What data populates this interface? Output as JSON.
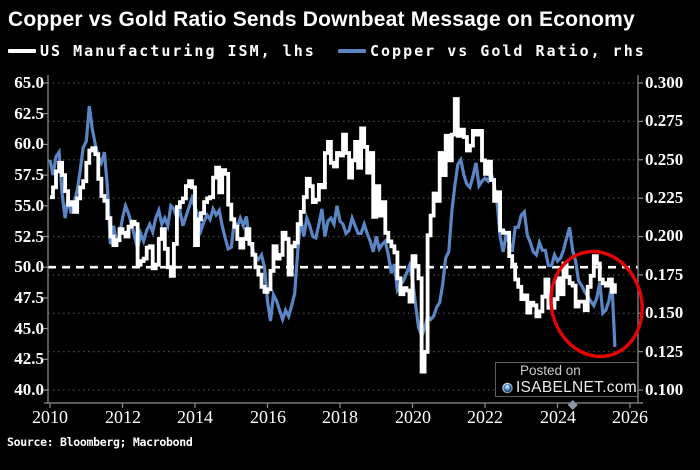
{
  "title": "Copper vs Gold Ratio Sends Downbeat Message on Economy",
  "legend": {
    "items": [
      {
        "label": "US Manufacturing ISM, lhs",
        "swatch_color": "#ffffff"
      },
      {
        "label": "Copper vs Gold Ratio, rhs",
        "swatch_color": "#5b86c5"
      }
    ]
  },
  "watermark": {
    "posted_on": "Posted on",
    "site": "ISABELNET.com"
  },
  "source": "Source: Bloomberg; Macrobond",
  "colors": {
    "background": "#000000",
    "ism_line": "#ffffff",
    "ratio_line": "#5b86c5",
    "grid_dotted": "#4a4a4a",
    "reference_dashed": "#ffffff",
    "axis": "#8f8f8f",
    "annotation": "#e60505",
    "axis_marker": "#8a97a5"
  },
  "chart_data": {
    "type": "line",
    "title": "Copper vs Gold Ratio Sends Downbeat Message on Economy",
    "x_axis": {
      "tick_labels": [
        "2010",
        "2012",
        "2014",
        "2016",
        "2018",
        "2020",
        "2022",
        "2024",
        "2026"
      ],
      "tick_years": [
        2010,
        2012,
        2014,
        2016,
        2018,
        2020,
        2022,
        2024,
        2026
      ],
      "range_years": [
        2010,
        2026.2
      ]
    },
    "left_axis": {
      "label": "US Manufacturing ISM",
      "ticks": [
        65.0,
        62.5,
        60.0,
        57.5,
        55.0,
        52.5,
        50.0,
        47.5,
        45.0,
        42.5,
        40.0
      ],
      "tick_labels": [
        "65.0",
        "62.5",
        "60.0",
        "57.5",
        "55.0",
        "52.5",
        "50.0",
        "47.5",
        "45.0",
        "42.5",
        "40.0"
      ],
      "range": [
        40.0,
        65.0
      ]
    },
    "right_axis": {
      "label": "Copper vs Gold Ratio",
      "ticks": [
        0.3,
        0.275,
        0.25,
        0.225,
        0.2,
        0.175,
        0.15,
        0.125,
        0.1
      ],
      "tick_labels": [
        "0.300",
        "0.275",
        "0.250",
        "0.225",
        "0.200",
        "0.175",
        "0.150",
        "0.125",
        "0.100"
      ],
      "range": [
        0.1,
        0.3
      ]
    },
    "reference_line": {
      "axis": "left",
      "value": 50.0,
      "style": "dashed",
      "color": "#ffffff"
    },
    "series": [
      {
        "name": "US Manufacturing ISM, lhs",
        "axis": "left",
        "line_style": "step",
        "color": "#ffffff",
        "start_year": 2010,
        "frequency": "monthly",
        "values": [
          55.7,
          56.5,
          57.8,
          58.5,
          57.5,
          56.2,
          55.1,
          55.3,
          54.5,
          55.6,
          56.5,
          57.0,
          58.5,
          59.5,
          59.7,
          59.2,
          57.2,
          55.8,
          55.4,
          54.0,
          52.5,
          51.8,
          52.2,
          53.1,
          52.8,
          52.5,
          53.3,
          53.7,
          53.5,
          50.2,
          50.5,
          50.7,
          51.6,
          51.7,
          49.9,
          50.2,
          52.3,
          53.1,
          51.5,
          50.0,
          49.3,
          51.9,
          54.9,
          55.3,
          55.6,
          56.6,
          57.0,
          56.5,
          51.8,
          53.9,
          54.4,
          55.3,
          55.6,
          55.7,
          57.3,
          58.1,
          56.1,
          57.9,
          57.6,
          55.1,
          53.9,
          53.3,
          52.3,
          51.6,
          52.3,
          53.1,
          51.9,
          51.0,
          50.0,
          49.4,
          48.4,
          48.0,
          48.2,
          49.7,
          51.7,
          50.7,
          51.0,
          52.8,
          52.3,
          49.4,
          51.7,
          52.0,
          53.5,
          54.5,
          55.7,
          57.2,
          56.6,
          55.3,
          55.5,
          56.7,
          56.5,
          59.3,
          60.2,
          58.5,
          58.2,
          59.3,
          59.1,
          60.8,
          59.3,
          57.3,
          58.7,
          60.2,
          58.1,
          61.3,
          59.8,
          57.7,
          59.3,
          54.1,
          56.6,
          54.2,
          55.3,
          52.8,
          52.1,
          51.7,
          51.2,
          49.1,
          47.8,
          48.3,
          48.1,
          47.2,
          50.9,
          50.1,
          49.1,
          41.5,
          43.1,
          52.6,
          54.2,
          56.0,
          55.4,
          59.3,
          57.5,
          60.7,
          58.7,
          60.8,
          63.7,
          60.7,
          61.2,
          60.6,
          59.5,
          59.9,
          61.1,
          60.8,
          61.1,
          58.7,
          57.6,
          58.6,
          57.1,
          55.4,
          56.1,
          53.0,
          52.8,
          52.8,
          50.9,
          50.2,
          49.0,
          48.4,
          47.4,
          47.7,
          46.3,
          47.1,
          46.9,
          46.0,
          46.4,
          47.6,
          49.0,
          46.7,
          46.7,
          47.4,
          49.1,
          47.8,
          50.3,
          49.2,
          48.7,
          48.5,
          46.8,
          47.2,
          47.2,
          46.5,
          48.4,
          49.3,
          50.9,
          50.3,
          49.0,
          48.7,
          48.5,
          49.0,
          48.0,
          48.7
        ]
      },
      {
        "name": "Copper vs Gold Ratio, rhs",
        "axis": "right",
        "line_style": "linear",
        "color": "#5b86c5",
        "start_year": 2010,
        "frequency": "monthly",
        "values": [
          0.25,
          0.24,
          0.252,
          0.255,
          0.228,
          0.212,
          0.225,
          0.215,
          0.222,
          0.23,
          0.243,
          0.258,
          0.262,
          0.285,
          0.27,
          0.26,
          0.252,
          0.248,
          0.255,
          0.232,
          0.195,
          0.207,
          0.197,
          0.201,
          0.212,
          0.22,
          0.215,
          0.208,
          0.2,
          0.192,
          0.202,
          0.197,
          0.204,
          0.208,
          0.203,
          0.212,
          0.217,
          0.208,
          0.212,
          0.207,
          0.22,
          0.218,
          0.212,
          0.217,
          0.207,
          0.213,
          0.219,
          0.225,
          0.219,
          0.214,
          0.204,
          0.21,
          0.214,
          0.211,
          0.218,
          0.214,
          0.217,
          0.207,
          0.199,
          0.192,
          0.193,
          0.21,
          0.206,
          0.212,
          0.207,
          0.213,
          0.197,
          0.192,
          0.187,
          0.185,
          0.188,
          0.18,
          0.158,
          0.145,
          0.162,
          0.158,
          0.152,
          0.146,
          0.152,
          0.148,
          0.155,
          0.163,
          0.19,
          0.212,
          0.2,
          0.212,
          0.207,
          0.2,
          0.199,
          0.208,
          0.218,
          0.2,
          0.21,
          0.212,
          0.208,
          0.22,
          0.21,
          0.208,
          0.202,
          0.204,
          0.212,
          0.207,
          0.202,
          0.202,
          0.208,
          0.202,
          0.197,
          0.19,
          0.2,
          0.192,
          0.195,
          0.197,
          0.188,
          0.176,
          0.182,
          0.165,
          0.168,
          0.171,
          0.176,
          0.181,
          0.172,
          0.156,
          0.141,
          0.135,
          0.14,
          0.148,
          0.146,
          0.148,
          0.154,
          0.157,
          0.169,
          0.186,
          0.19,
          0.216,
          0.233,
          0.247,
          0.25,
          0.24,
          0.234,
          0.232,
          0.239,
          0.248,
          0.233,
          0.236,
          0.238,
          0.236,
          0.242,
          0.234,
          0.222,
          0.2,
          0.19,
          0.201,
          0.196,
          0.19,
          0.206,
          0.206,
          0.214,
          0.216,
          0.201,
          0.196,
          0.19,
          0.188,
          0.196,
          0.191,
          0.191,
          0.181,
          0.181,
          0.188,
          0.184,
          0.186,
          0.191,
          0.199,
          0.206,
          0.191,
          0.184,
          0.171,
          0.168,
          0.164,
          0.161,
          0.158,
          0.155,
          0.16,
          0.17,
          0.15,
          0.152,
          0.158,
          0.17,
          0.128
        ]
      }
    ],
    "annotation": {
      "shape": "ellipse",
      "center_year": 2025.08,
      "center_value_rhs": 0.156,
      "radius_years": 1.24,
      "radius_value_rhs": 0.0345,
      "rotation_deg": -15,
      "color": "#e60505"
    },
    "axis_marker": {
      "shape": "diamond",
      "year": 2024.42
    },
    "grid": "horizontal-dotted",
    "legend_position": "top-left"
  }
}
